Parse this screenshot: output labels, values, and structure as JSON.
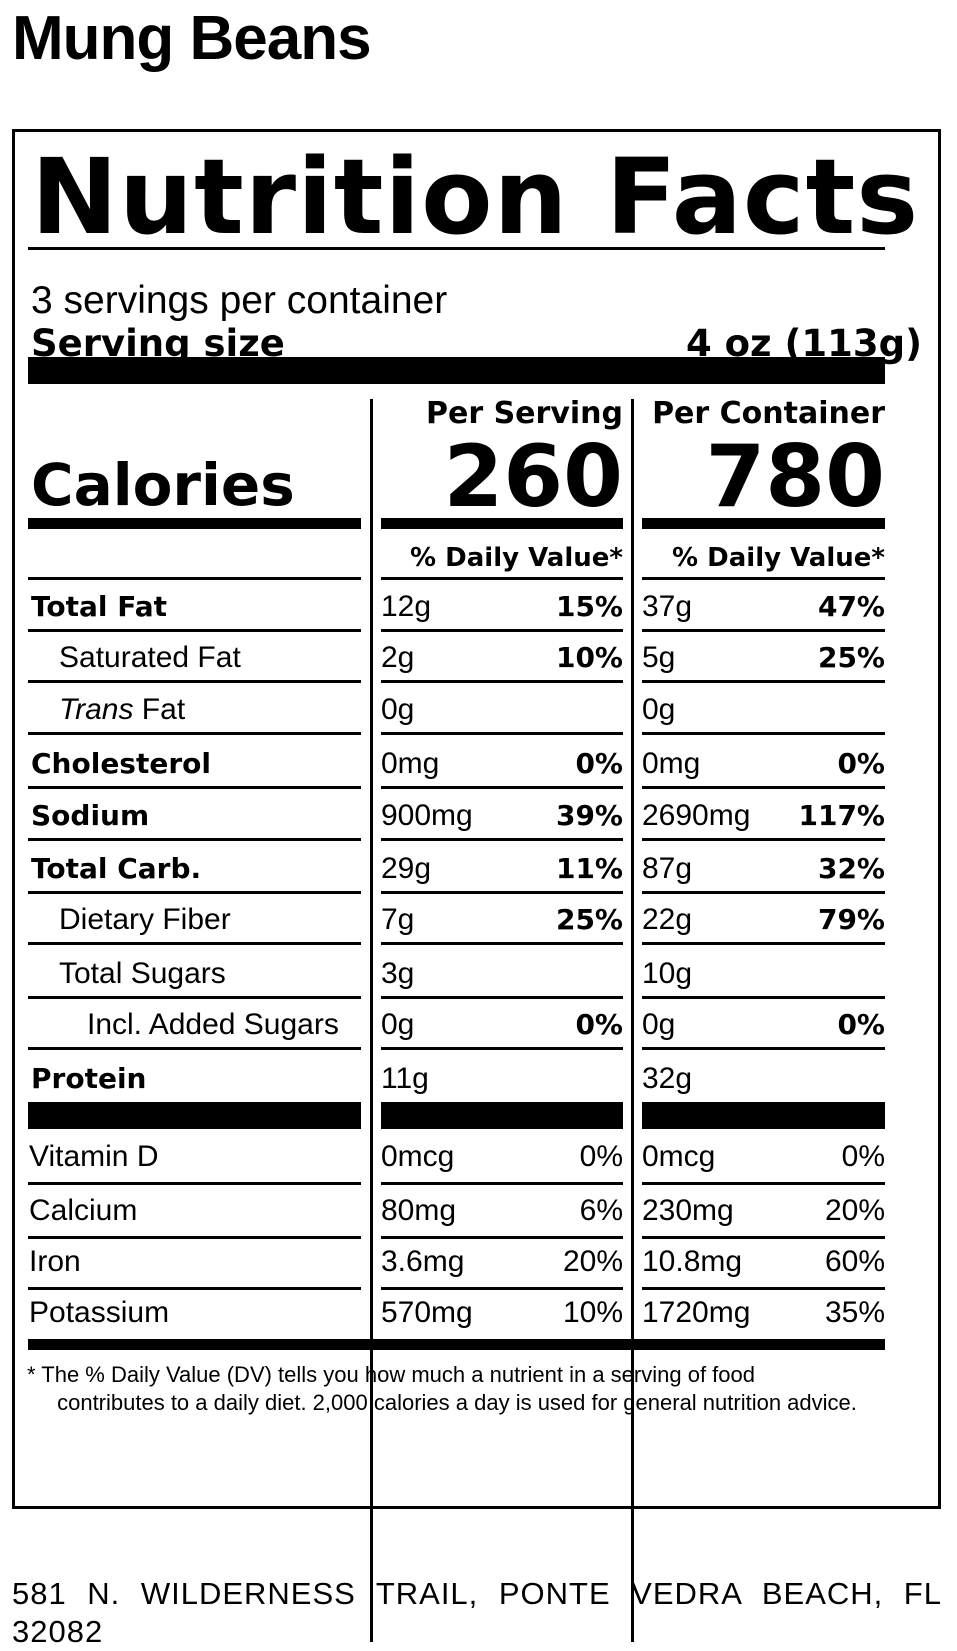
{
  "product": {
    "name": "Mung Beans"
  },
  "label": {
    "title": "Nutrition Facts",
    "servings_per_container": "3 servings per container",
    "serving_size_label": "Serving size",
    "serving_size_value": "4 oz (113g)",
    "columns": {
      "per_serving": "Per Serving",
      "per_container": "Per Container"
    },
    "calories": {
      "label": "Calories",
      "per_serving": "260",
      "per_container": "780"
    },
    "daily_value_header": "% Daily Value*",
    "nutrients": [
      {
        "name": "Total Fat",
        "bold": true,
        "indent": 0,
        "serving_amount": "12g",
        "serving_dv": "15%",
        "container_amount": "37g",
        "container_dv": "47%"
      },
      {
        "name": "Saturated Fat",
        "bold": false,
        "indent": 1,
        "serving_amount": "2g",
        "serving_dv": "10%",
        "container_amount": "5g",
        "container_dv": "25%"
      },
      {
        "name_italic": "Trans",
        "name": " Fat",
        "bold": false,
        "indent": 1,
        "serving_amount": "0g",
        "serving_dv": "",
        "container_amount": "0g",
        "container_dv": ""
      },
      {
        "name": "Cholesterol",
        "bold": true,
        "indent": 0,
        "serving_amount": "0mg",
        "serving_dv": "0%",
        "container_amount": "0mg",
        "container_dv": "0%"
      },
      {
        "name": "Sodium",
        "bold": true,
        "indent": 0,
        "serving_amount": "900mg",
        "serving_dv": "39%",
        "container_amount": "2690mg",
        "container_dv": "117%"
      },
      {
        "name": "Total Carb.",
        "bold": true,
        "indent": 0,
        "serving_amount": "29g",
        "serving_dv": "11%",
        "container_amount": "87g",
        "container_dv": "32%"
      },
      {
        "name": "Dietary Fiber",
        "bold": false,
        "indent": 1,
        "serving_amount": "7g",
        "serving_dv": "25%",
        "container_amount": "22g",
        "container_dv": "79%"
      },
      {
        "name": "Total Sugars",
        "bold": false,
        "indent": 1,
        "serving_amount": "3g",
        "serving_dv": "",
        "container_amount": "10g",
        "container_dv": ""
      },
      {
        "name": "Incl. Added Sugars",
        "bold": false,
        "indent": 2,
        "serving_amount": "0g",
        "serving_dv": "0%",
        "container_amount": "0g",
        "container_dv": "0%"
      },
      {
        "name": "Protein",
        "bold": true,
        "indent": 0,
        "serving_amount": "11g",
        "serving_dv": "",
        "container_amount": "32g",
        "container_dv": ""
      }
    ],
    "vitamins": [
      {
        "name": "Vitamin D",
        "serving_amount": "0mcg",
        "serving_dv": "0%",
        "container_amount": "0mcg",
        "container_dv": "0%"
      },
      {
        "name": "Calcium",
        "serving_amount": "80mg",
        "serving_dv": "6%",
        "container_amount": "230mg",
        "container_dv": "20%"
      },
      {
        "name": "Iron",
        "serving_amount": "3.6mg",
        "serving_dv": "20%",
        "container_amount": "10.8mg",
        "container_dv": "60%"
      },
      {
        "name": "Potassium",
        "serving_amount": "570mg",
        "serving_dv": "10%",
        "container_amount": "1720mg",
        "container_dv": "35%"
      }
    ],
    "footnote_line1": "* The % Daily Value (DV) tells you how much a nutrient in a serving of food",
    "footnote_line2": "contributes to a daily diet. 2,000 calories a day is used for general nutrition advice."
  },
  "address": "581 N. WILDERNESS TRAIL, PONTE VEDRA BEACH, FL 32082"
}
